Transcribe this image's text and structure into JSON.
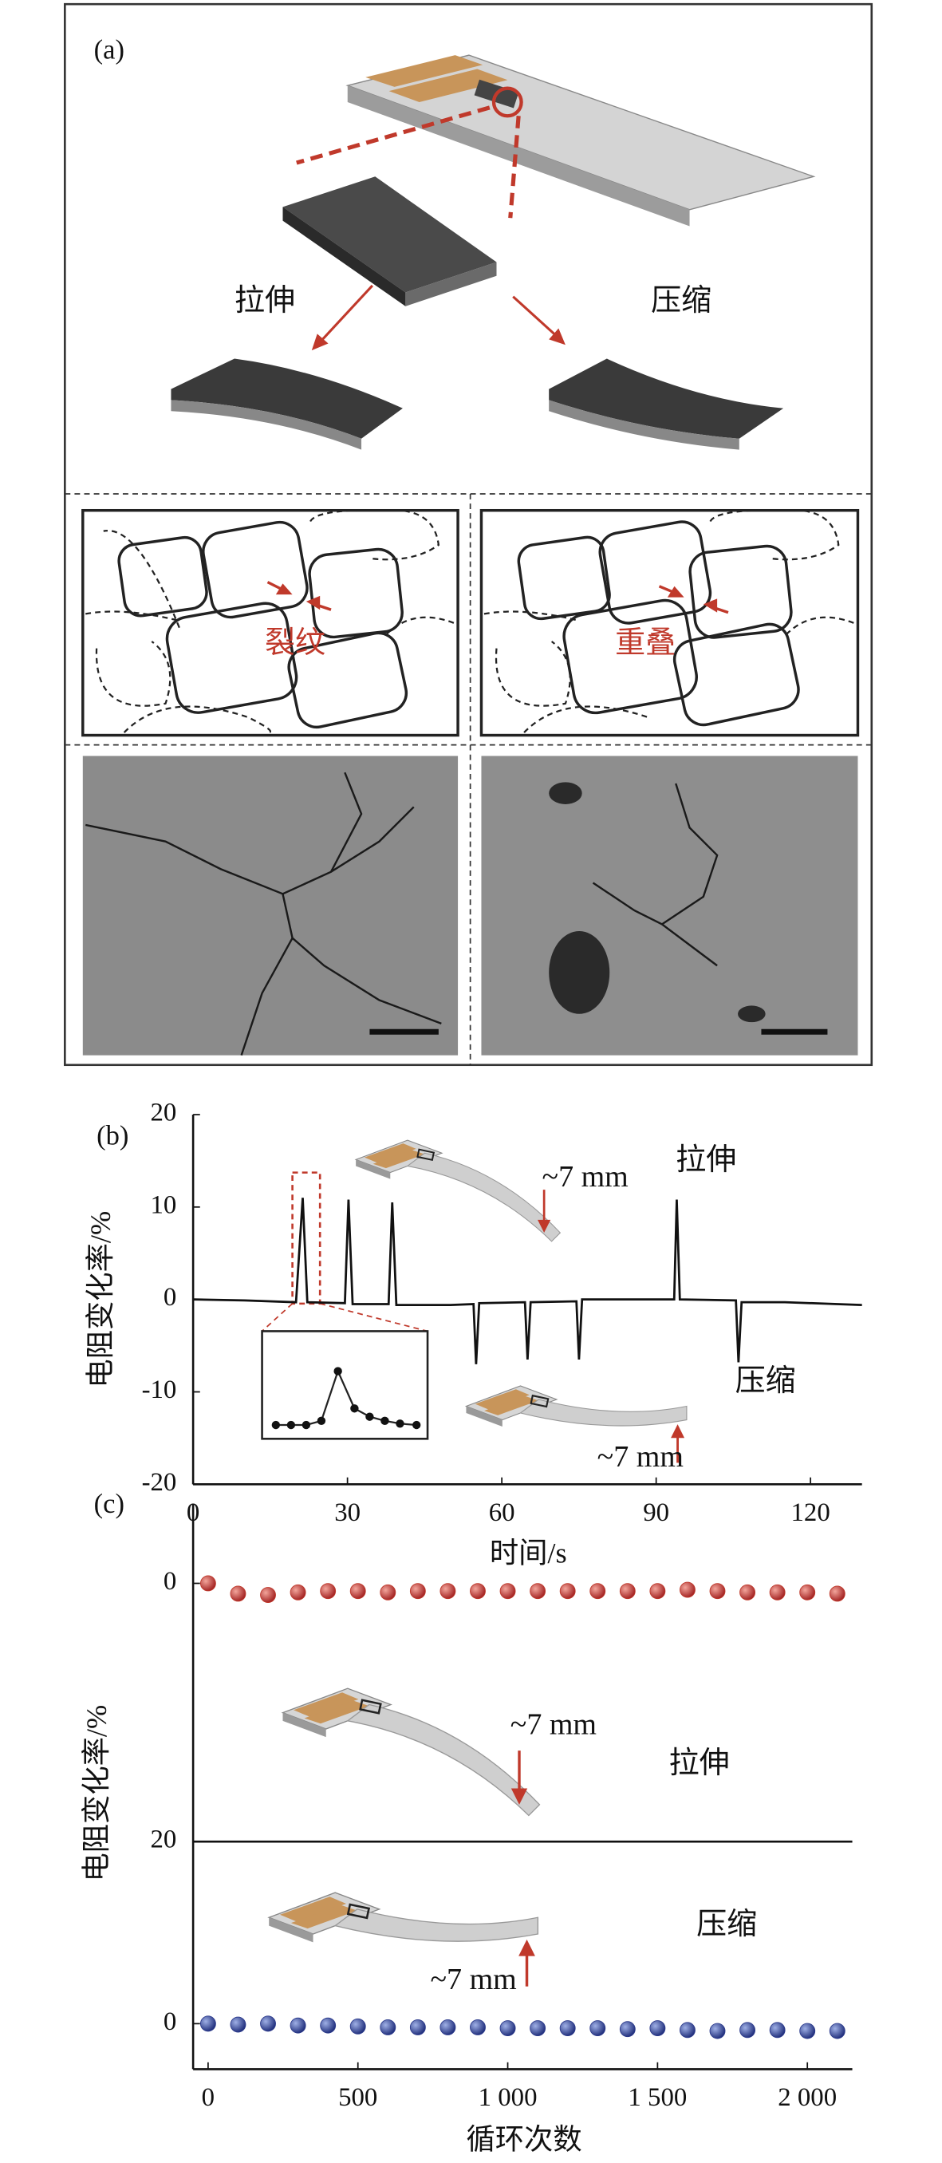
{
  "panel_a": {
    "label": "(a)",
    "stretch": "拉伸",
    "compress": "压缩",
    "crack": "裂纹",
    "overlap": "重叠"
  },
  "chart_data": [
    {
      "type": "line",
      "label": "(b)",
      "y_label": "电阻变化率/%",
      "x_label": "时间/s",
      "annotations": [
        "拉伸",
        "压缩",
        "~7 mm",
        "~7 mm"
      ],
      "x": [
        0,
        10,
        20,
        21.3,
        22.2,
        29.5,
        30.2,
        31,
        38,
        38.7,
        39.5,
        50,
        54.5,
        55,
        55.6,
        64.5,
        65,
        65.6,
        74.5,
        75,
        75.6,
        93.5,
        94,
        94.6,
        105.5,
        106,
        106.6,
        115,
        130
      ],
      "series": [
        {
          "color": "#111111",
          "values": [
            0,
            -0.1,
            -0.3,
            11,
            -0.3,
            -0.4,
            10.8,
            -0.5,
            -0.5,
            10.5,
            -0.6,
            -0.6,
            -0.5,
            -7,
            -0.4,
            -0.3,
            -6.5,
            -0.3,
            -0.2,
            -6.5,
            0,
            0,
            10.8,
            0,
            -0.1,
            -6.8,
            -0.3,
            -0.3,
            -0.6
          ]
        }
      ],
      "xlim": [
        0,
        130
      ],
      "xticks": [
        0,
        30,
        60,
        90,
        120
      ],
      "ylim": [
        -20,
        20
      ],
      "yticks": [
        -20,
        -10,
        0,
        10,
        20
      ]
    },
    {
      "type": "scatter",
      "label": "(c)",
      "y_label": "电阻变化率/%",
      "x_label": "循环次数",
      "annotations": [
        "拉伸",
        "压缩",
        "~7 mm",
        "~7 mm"
      ],
      "x": [
        0,
        100,
        200,
        300,
        400,
        500,
        600,
        700,
        800,
        900,
        1000,
        1100,
        1200,
        1300,
        1400,
        1500,
        1600,
        1700,
        1800,
        1900,
        2000,
        2100
      ],
      "series": [
        {
          "color": "#c0392b",
          "values": [
            0,
            0.8,
            0.9,
            0.7,
            0.6,
            0.6,
            0.7,
            0.6,
            0.6,
            0.6,
            0.6,
            0.6,
            0.6,
            0.6,
            0.6,
            0.6,
            0.5,
            0.6,
            0.7,
            0.7,
            0.7,
            0.8
          ]
        },
        {
          "color": "#2b3a8c",
          "axis": "y2",
          "values": [
            0,
            -0.1,
            0,
            -0.2,
            -0.2,
            -0.3,
            -0.4,
            -0.4,
            -0.4,
            -0.4,
            -0.5,
            -0.5,
            -0.5,
            -0.5,
            -0.6,
            -0.5,
            -0.7,
            -0.8,
            -0.7,
            -0.7,
            -0.8,
            -0.8
          ]
        }
      ],
      "xlim": [
        -50,
        2150
      ],
      "xticks": [
        0,
        500,
        {
          "value": 1000,
          "label": "1 000"
        },
        {
          "value": 1500,
          "label": "1 500"
        },
        {
          "value": 2000,
          "label": "2 000"
        }
      ],
      "ylim": [
        20,
        -5
      ],
      "yticks": [
        0,
        20
      ],
      "y2lim": [
        -5,
        20
      ],
      "y2ticks": [
        0
      ]
    }
  ]
}
